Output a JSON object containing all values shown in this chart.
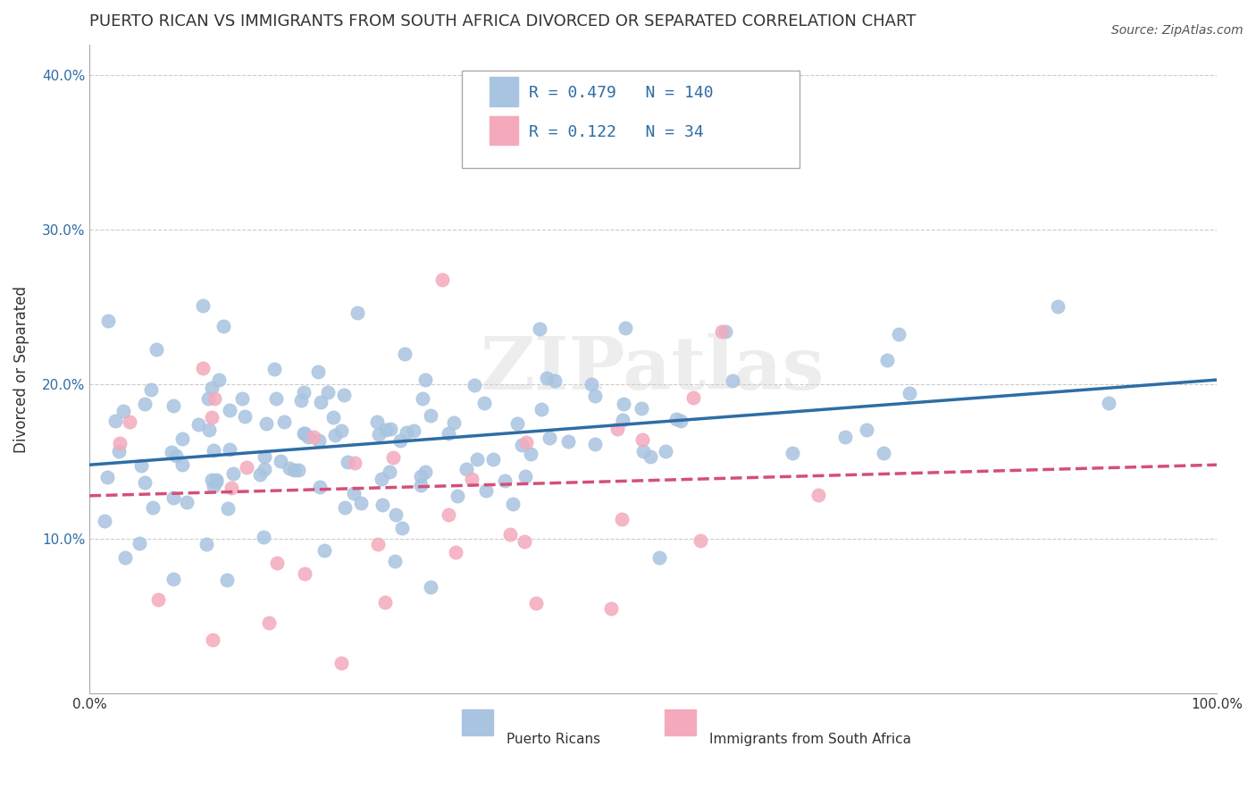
{
  "title": "PUERTO RICAN VS IMMIGRANTS FROM SOUTH AFRICA DIVORCED OR SEPARATED CORRELATION CHART",
  "source": "Source: ZipAtlas.com",
  "xlabel": "",
  "ylabel": "Divorced or Separated",
  "watermark": "ZIPatlas",
  "xlim": [
    0,
    1.0
  ],
  "ylim": [
    0,
    0.42
  ],
  "xticks": [
    0.0,
    0.1,
    0.2,
    0.3,
    0.4,
    0.5,
    0.6,
    0.7,
    0.8,
    0.9,
    1.0
  ],
  "xtick_labels": [
    "0.0%",
    "",
    "",
    "",
    "",
    "",
    "",
    "",
    "",
    "",
    "100.0%"
  ],
  "yticks": [
    0.0,
    0.1,
    0.2,
    0.3,
    0.4
  ],
  "ytick_labels": [
    "",
    "10.0%",
    "20.0%",
    "30.0%",
    "40.0%"
  ],
  "blue_R": 0.479,
  "blue_N": 140,
  "pink_R": 0.122,
  "pink_N": 34,
  "blue_color": "#a8c4e0",
  "blue_line_color": "#2e6da4",
  "pink_color": "#f4aabc",
  "pink_line_color": "#d44f7a",
  "legend_label_blue": "Puerto Ricans",
  "legend_label_pink": "Immigrants from South Africa",
  "background_color": "#ffffff",
  "grid_color": "#cccccc",
  "title_fontsize": 13,
  "axis_label_fontsize": 12,
  "tick_fontsize": 11,
  "blue_seed": 42,
  "pink_seed": 7,
  "blue_trend_intercept": 0.148,
  "blue_trend_slope": 0.055,
  "pink_trend_intercept": 0.128,
  "pink_trend_slope": 0.02
}
